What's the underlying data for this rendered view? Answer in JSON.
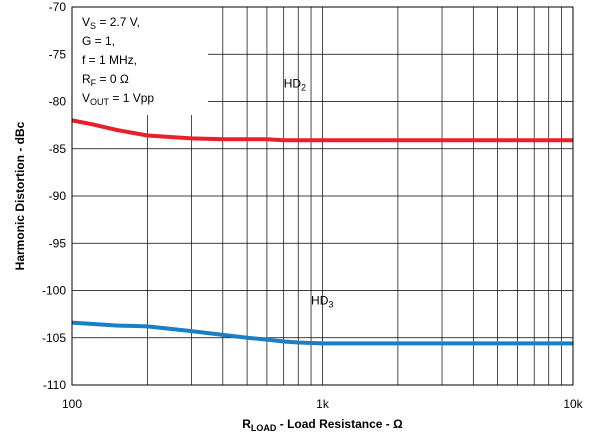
{
  "chart_data": {
    "type": "line",
    "x_scale": "log",
    "xlim": [
      100,
      10000
    ],
    "ylim": [
      -110,
      -70
    ],
    "x_ticks": [
      {
        "value": 100,
        "label": "100"
      },
      {
        "value": 1000,
        "label": "1k"
      },
      {
        "value": 10000,
        "label": "10k"
      }
    ],
    "y_ticks": [
      -70,
      -75,
      -80,
      -85,
      -90,
      -95,
      -100,
      -105,
      -110
    ],
    "grid": true,
    "xlabel": {
      "main": "R",
      "sub": "LOAD",
      "rest": " - Load Resistance - Ω"
    },
    "ylabel": "Harmonic Distortion - dBc",
    "conditions": [
      {
        "main": "V",
        "sub": "S",
        "rest": " = 2.7 V,"
      },
      {
        "main": "G = 1,",
        "sub": "",
        "rest": ""
      },
      {
        "main": "f = 1 MHz,",
        "sub": "",
        "rest": ""
      },
      {
        "main": "R",
        "sub": "F",
        "rest": " = 0 Ω"
      },
      {
        "main": "V",
        "sub": "OUT",
        "rest": " = 1 Vpp"
      }
    ],
    "series": [
      {
        "name": {
          "main": "HD",
          "sub": "2"
        },
        "color": "#e8202a",
        "label_at": {
          "x": 700,
          "y": -78.5
        },
        "points": [
          [
            100,
            -82.0
          ],
          [
            120,
            -82.4
          ],
          [
            150,
            -83.0
          ],
          [
            200,
            -83.6
          ],
          [
            300,
            -83.9
          ],
          [
            400,
            -84.0
          ],
          [
            600,
            -84.0
          ],
          [
            700,
            -84.1
          ],
          [
            1000,
            -84.1
          ],
          [
            2000,
            -84.1
          ],
          [
            5000,
            -84.1
          ],
          [
            10000,
            -84.1
          ]
        ]
      },
      {
        "name": {
          "main": "HD",
          "sub": "3"
        },
        "color": "#1a7fc4",
        "label_at": {
          "x": 900,
          "y": -101.5
        },
        "points": [
          [
            100,
            -103.4
          ],
          [
            150,
            -103.7
          ],
          [
            200,
            -103.8
          ],
          [
            300,
            -104.3
          ],
          [
            400,
            -104.7
          ],
          [
            500,
            -105.0
          ],
          [
            600,
            -105.2
          ],
          [
            700,
            -105.4
          ],
          [
            800,
            -105.5
          ],
          [
            1000,
            -105.6
          ],
          [
            2000,
            -105.6
          ],
          [
            5000,
            -105.6
          ],
          [
            10000,
            -105.6
          ]
        ]
      }
    ]
  }
}
